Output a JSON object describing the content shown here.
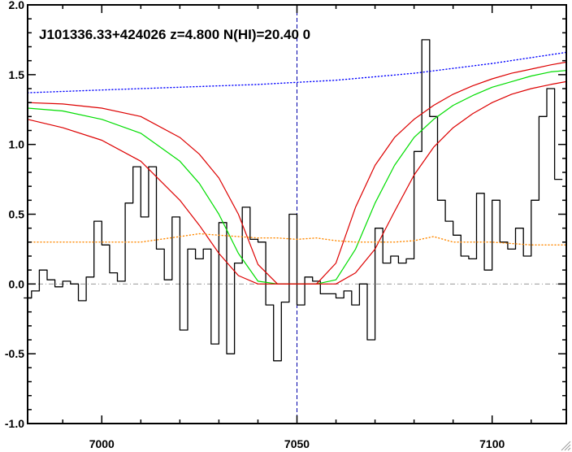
{
  "chart_data": {
    "type": "line",
    "title": "J101336.33+424026 z=4.800 N(HI)=20.40 0",
    "xlabel": "",
    "ylabel": "",
    "xlim": [
      6981,
      7119
    ],
    "ylim": [
      -1.0,
      2.0
    ],
    "x_ticks": [
      "7000",
      "7050",
      "7100"
    ],
    "x_tick_values": [
      7000,
      7050,
      7100
    ],
    "y_ticks": [
      "-1.0",
      "-0.5",
      "0.0",
      "0.5",
      "1.0",
      "1.5",
      "2.0"
    ],
    "y_tick_values": [
      -1.0,
      -0.5,
      0.0,
      0.5,
      1.0,
      1.5,
      2.0
    ],
    "vertical_marker": 7050,
    "zero_line": 0.0,
    "colors": {
      "flux": "#000000",
      "model": "#00dd00",
      "bounds": "#dd0000",
      "continuum": "#0000ff",
      "error": "#ff8800",
      "marker": "#0000aa",
      "zero": "#999999"
    },
    "series": [
      {
        "kind": "step",
        "x": [
          6981,
          6983,
          6985,
          6987,
          6989,
          6991,
          6993,
          6995,
          6997,
          6999,
          7001,
          7003,
          7005,
          7007,
          7009,
          7011,
          7013,
          7015,
          7017,
          7019,
          7021,
          7023,
          7025,
          7027,
          7029,
          7031,
          7033,
          7035,
          7037,
          7039,
          7041,
          7043,
          7045,
          7047,
          7049,
          7051,
          7053,
          7055,
          7057,
          7059,
          7061,
          7063,
          7065,
          7067,
          7069,
          7071,
          7073,
          7075,
          7077,
          7079,
          7081,
          7083,
          7085,
          7087,
          7089,
          7091,
          7093,
          7095,
          7097,
          7099,
          7101,
          7103,
          7105,
          7107,
          7109,
          7111,
          7113,
          7115,
          7117
        ],
        "values": [
          -0.1,
          -0.05,
          0.1,
          0.03,
          -0.02,
          0.02,
          0.0,
          -0.12,
          0.05,
          0.45,
          0.28,
          0.08,
          0.02,
          0.58,
          0.84,
          0.48,
          0.84,
          0.25,
          0.03,
          0.48,
          -0.33,
          0.25,
          0.18,
          0.25,
          -0.43,
          0.44,
          -0.5,
          0.15,
          0.55,
          0.32,
          0.3,
          -0.15,
          -0.55,
          -0.13,
          0.5,
          -0.15,
          0.05,
          0.02,
          -0.07,
          -0.07,
          -0.1,
          -0.05,
          -0.15,
          0.0,
          -0.4,
          0.4,
          0.15,
          0.2,
          0.15,
          0.18,
          0.95,
          1.75,
          1.2,
          0.6,
          0.45,
          0.35,
          0.2,
          0.18,
          0.65,
          0.1,
          0.6,
          0.3,
          0.25,
          0.4,
          0.2,
          0.6,
          1.2,
          1.4,
          0.75
        ]
      },
      {
        "kind": "curve",
        "x": [
          6981,
          6990,
          7000,
          7010,
          7020,
          7025,
          7030,
          7035,
          7040,
          7045,
          7050,
          7055,
          7060,
          7065,
          7070,
          7075,
          7080,
          7085,
          7090,
          7095,
          7100,
          7105,
          7110,
          7115,
          7119
        ],
        "values": [
          1.26,
          1.24,
          1.18,
          1.08,
          0.88,
          0.72,
          0.5,
          0.22,
          0.02,
          0.0,
          0.0,
          0.0,
          0.03,
          0.25,
          0.58,
          0.85,
          1.05,
          1.18,
          1.28,
          1.35,
          1.41,
          1.45,
          1.49,
          1.52,
          1.53
        ]
      },
      {
        "kind": "curve",
        "x": [
          6981,
          6990,
          7000,
          7010,
          7020,
          7025,
          7030,
          7035,
          7040,
          7045,
          7050,
          7055,
          7060,
          7065,
          7070,
          7075,
          7080,
          7085,
          7090,
          7095,
          7100,
          7105,
          7110,
          7115,
          7119
        ],
        "values": [
          1.3,
          1.29,
          1.26,
          1.2,
          1.05,
          0.93,
          0.76,
          0.5,
          0.14,
          0.0,
          0.0,
          0.0,
          0.15,
          0.55,
          0.85,
          1.05,
          1.18,
          1.28,
          1.36,
          1.42,
          1.47,
          1.51,
          1.54,
          1.57,
          1.59
        ]
      },
      {
        "kind": "curve",
        "x": [
          6981,
          6990,
          7000,
          7010,
          7020,
          7025,
          7030,
          7035,
          7040,
          7045,
          7050,
          7055,
          7060,
          7065,
          7070,
          7075,
          7080,
          7085,
          7090,
          7095,
          7100,
          7105,
          7110,
          7115,
          7119
        ],
        "values": [
          1.18,
          1.12,
          1.03,
          0.88,
          0.6,
          0.42,
          0.22,
          0.06,
          0.0,
          0.0,
          0.0,
          0.0,
          0.0,
          0.08,
          0.25,
          0.52,
          0.78,
          0.98,
          1.12,
          1.22,
          1.3,
          1.36,
          1.4,
          1.43,
          1.45
        ]
      },
      {
        "kind": "dotted",
        "x": [
          6981,
          7000,
          7020,
          7040,
          7060,
          7080,
          7100,
          7119
        ],
        "values": [
          1.37,
          1.39,
          1.41,
          1.43,
          1.46,
          1.51,
          1.58,
          1.66
        ]
      },
      {
        "kind": "dotted",
        "x": [
          6981,
          6990,
          7000,
          7010,
          7015,
          7020,
          7025,
          7030,
          7035,
          7040,
          7045,
          7050,
          7055,
          7060,
          7065,
          7070,
          7075,
          7080,
          7085,
          7090,
          7100,
          7110,
          7119
        ],
        "values": [
          0.3,
          0.3,
          0.3,
          0.3,
          0.32,
          0.34,
          0.36,
          0.35,
          0.34,
          0.33,
          0.33,
          0.32,
          0.33,
          0.31,
          0.3,
          0.3,
          0.3,
          0.31,
          0.34,
          0.3,
          0.3,
          0.28,
          0.28
        ]
      }
    ]
  }
}
